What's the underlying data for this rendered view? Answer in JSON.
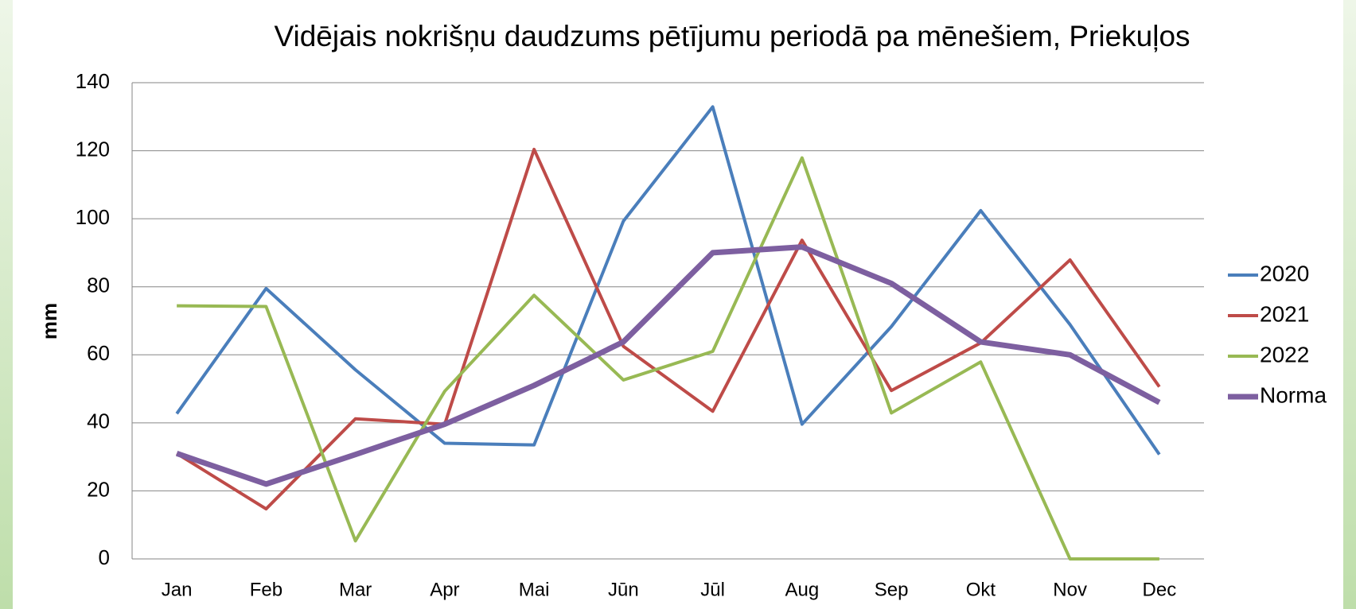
{
  "chart_data": {
    "type": "line",
    "title": "Vidējais nokrišņu daudzums pētījumu periodā pa mēnešiem, Priekuļos",
    "y_label": "mm",
    "categories": [
      "Jan",
      "Feb",
      "Mar",
      "Apr",
      "Mai",
      "Jūn",
      "Jūl",
      "Aug",
      "Sep",
      "Okt",
      "Nov",
      "Dec"
    ],
    "series": [
      {
        "name": "2020",
        "color": "#4a7ebb",
        "values": [
          42.7,
          79.5,
          55.6,
          34,
          33.5,
          99.3,
          132.9,
          39.6,
          68.3,
          102.4,
          68.9,
          30.7
        ]
      },
      {
        "name": "2021",
        "color": "#be4b48",
        "values": [
          31,
          14.7,
          41.2,
          39.6,
          120.4,
          62.5,
          43.4,
          93.7,
          49.5,
          63.5,
          87.9,
          50.6
        ]
      },
      {
        "name": "2022",
        "color": "#98b954",
        "values": [
          74.4,
          74.2,
          5.3,
          49.3,
          77.5,
          52.6,
          61,
          117.9,
          42.9,
          57.9,
          0,
          0
        ]
      },
      {
        "name": "Norma",
        "color": "#7d5fa0",
        "values": [
          31,
          22,
          30.7,
          39.6,
          51,
          63.8,
          90,
          91.7,
          81,
          63.8,
          60,
          46
        ]
      }
    ],
    "ylim": [
      0,
      140
    ],
    "yticks": [
      0,
      20,
      40,
      60,
      80,
      100,
      120,
      140
    ],
    "grid": true,
    "legend": "right"
  }
}
